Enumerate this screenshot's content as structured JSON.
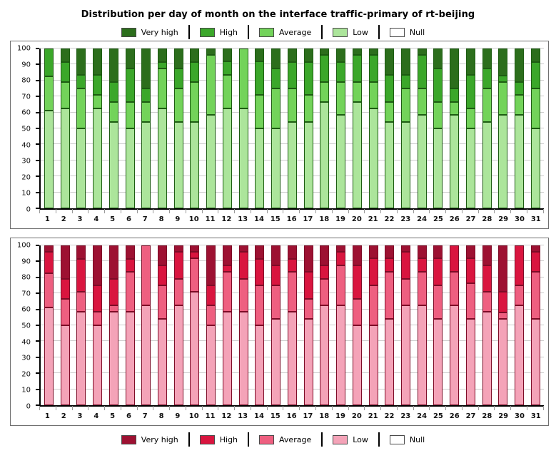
{
  "title": "Distribution per day of month on the interface traffic-primary of rt-beijing",
  "legend_labels": [
    "Very high",
    "High",
    "Average",
    "Low",
    "Null"
  ],
  "legend_color_keys": [
    "very_high",
    "high",
    "average",
    "low",
    "null"
  ],
  "colors": {
    "green": {
      "very_high": "#2C6E1C",
      "high": "#3BA72A",
      "average": "#73D35A",
      "low": "#ACE59B",
      "null": "#FFFFFF",
      "border": "#1D5C12"
    },
    "red": {
      "very_high": "#9D1132",
      "high": "#D9153F",
      "average": "#EE5F80",
      "low": "#F4A3B8",
      "null": "#FFFFFF",
      "border": "#7D0C27"
    },
    "frame": "#707070",
    "gridline": "#CDCDCD",
    "axis": "#000000"
  },
  "chart_data": [
    {
      "type": "bar",
      "stacked": true,
      "palette": "green",
      "legend_position": "top",
      "categories": [
        1,
        2,
        3,
        4,
        5,
        6,
        7,
        8,
        9,
        10,
        11,
        12,
        13,
        14,
        15,
        16,
        17,
        18,
        19,
        20,
        21,
        22,
        23,
        24,
        25,
        26,
        27,
        28,
        29,
        30,
        31
      ],
      "ylim": [
        0,
        100
      ],
      "yticks": [
        0,
        10,
        20,
        30,
        40,
        50,
        60,
        70,
        80,
        90,
        100
      ],
      "grid": true,
      "series": [
        {
          "name": "Low",
          "color_key": "low",
          "values": [
            61,
            62.5,
            50,
            62.5,
            54,
            50,
            54,
            62.5,
            54,
            54,
            58.5,
            62.5,
            62.5,
            50,
            50,
            54,
            54,
            66.5,
            58.5,
            66.5,
            62.5,
            54,
            54,
            58.5,
            50,
            58.5,
            50,
            54,
            58.5,
            58.5,
            50
          ]
        },
        {
          "name": "Average",
          "color_key": "average",
          "values": [
            21.5,
            16.5,
            25,
            8.5,
            12.5,
            16.5,
            12.5,
            25,
            21,
            25,
            37.5,
            21,
            37.5,
            21,
            25,
            21,
            17,
            12.5,
            20.5,
            12.5,
            16.5,
            12.5,
            21,
            16.5,
            16.5,
            8,
            12.5,
            21,
            20.5,
            12.5,
            25
          ]
        },
        {
          "name": "High",
          "color_key": "high",
          "values": [
            17.5,
            12.5,
            8.5,
            12.5,
            12.5,
            21,
            8.5,
            4,
            12.5,
            12.5,
            0,
            8.5,
            0,
            21,
            12.5,
            16.5,
            20.5,
            17,
            12.5,
            17,
            17,
            17,
            8.5,
            21,
            21,
            8.5,
            21,
            12.5,
            4,
            8,
            16.5
          ]
        },
        {
          "name": "Very high",
          "color_key": "very_high",
          "values": [
            0,
            8.5,
            16.5,
            16.5,
            21,
            12.5,
            25,
            8.5,
            12.5,
            8.5,
            4,
            8,
            0,
            8,
            12.5,
            8.5,
            8.5,
            4,
            8.5,
            4,
            4,
            16.5,
            16.5,
            4,
            12.5,
            25,
            16.5,
            12.5,
            17,
            21,
            8.5
          ]
        },
        {
          "name": "Null",
          "color_key": "null",
          "values": [
            0,
            0,
            0,
            0,
            0,
            0,
            0,
            0,
            0,
            0,
            0,
            0,
            0,
            0,
            0,
            0,
            0,
            0,
            0,
            0,
            0,
            0,
            0,
            0,
            0,
            0,
            0,
            0,
            0,
            0,
            0
          ]
        }
      ]
    },
    {
      "type": "bar",
      "stacked": true,
      "palette": "red",
      "legend_position": "bottom",
      "categories": [
        1,
        2,
        3,
        4,
        5,
        6,
        7,
        8,
        9,
        10,
        11,
        12,
        13,
        14,
        15,
        16,
        17,
        18,
        19,
        20,
        21,
        22,
        23,
        24,
        25,
        26,
        27,
        28,
        29,
        30,
        31
      ],
      "ylim": [
        0,
        100
      ],
      "yticks": [
        0,
        10,
        20,
        30,
        40,
        50,
        60,
        70,
        80,
        90,
        100
      ],
      "grid": true,
      "series": [
        {
          "name": "Low",
          "color_key": "low",
          "values": [
            61,
            50,
            58.5,
            50,
            58.5,
            58.5,
            62.5,
            54,
            62.5,
            71,
            50,
            58.5,
            58.5,
            50,
            54,
            58.5,
            54,
            62.5,
            62.5,
            50,
            50,
            54,
            62.5,
            62.5,
            54,
            62.5,
            54,
            58.5,
            54,
            62.5,
            54
          ]
        },
        {
          "name": "Average",
          "color_key": "average",
          "values": [
            21.5,
            16.5,
            12.5,
            8.5,
            4,
            25,
            37.5,
            21,
            16.5,
            21,
            12.5,
            25,
            20.5,
            25,
            21,
            25,
            12.5,
            16.5,
            25,
            16.5,
            25,
            29.5,
            16.5,
            21,
            21,
            21,
            22.5,
            12.5,
            4,
            12.5,
            29.5
          ]
        },
        {
          "name": "High",
          "color_key": "high",
          "values": [
            13.5,
            12.5,
            20.5,
            16.5,
            16.5,
            8,
            0,
            12.5,
            17,
            4,
            12.5,
            4,
            17,
            16.5,
            12.5,
            8,
            17,
            8.5,
            8.5,
            21,
            17,
            8.5,
            17,
            8.5,
            17,
            16.5,
            15.5,
            16.5,
            13,
            25,
            12.5
          ]
        },
        {
          "name": "Very high",
          "color_key": "very_high",
          "values": [
            4,
            21,
            8.5,
            25,
            21,
            8.5,
            0,
            12.5,
            4,
            4,
            25,
            12.5,
            4,
            8.5,
            12.5,
            8.5,
            16.5,
            12.5,
            4,
            12.5,
            8,
            8,
            4,
            8,
            8,
            0,
            8,
            12.5,
            29,
            0,
            4
          ]
        },
        {
          "name": "Null",
          "color_key": "null",
          "values": [
            0,
            0,
            0,
            0,
            0,
            0,
            0,
            0,
            0,
            0,
            0,
            0,
            0,
            0,
            0,
            0,
            0,
            0,
            0,
            0,
            0,
            0,
            0,
            0,
            0,
            0,
            0,
            0,
            0,
            0,
            0
          ]
        }
      ]
    }
  ]
}
